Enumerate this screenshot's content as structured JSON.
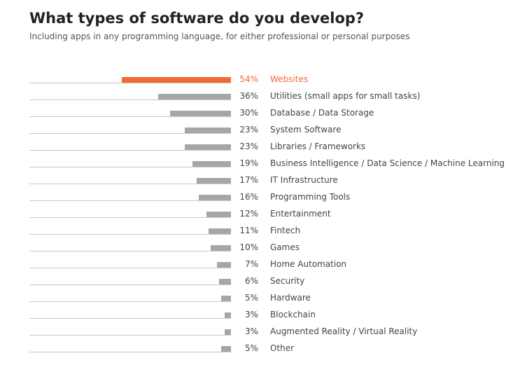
{
  "header": {
    "title": "What types of software do you develop?",
    "subtitle": "Including apps in any programming language, for either professional or personal purposes"
  },
  "colors": {
    "highlight": "#f26a30",
    "bar": "#a6a6a6",
    "baseline": "#c8c8c8"
  },
  "chart_data": {
    "type": "bar",
    "orientation": "horizontal",
    "title": "What types of software do you develop?",
    "subtitle": "Including apps in any programming language, for either professional or personal purposes",
    "unit": "%",
    "highlighted_category": "Websites",
    "xlim": [
      0,
      100
    ],
    "grid": false,
    "legend": "none",
    "categories": [
      "Websites",
      "Utilities (small apps for small tasks)",
      "Database / Data Storage",
      "System Software",
      "Libraries / Frameworks",
      "Business Intelligence / Data Science / Machine Learning",
      "IT Infrastructure",
      "Programming Tools",
      "Entertainment",
      "Fintech",
      "Games",
      "Home Automation",
      "Security",
      "Hardware",
      "Blockchain",
      "Augmented Reality / Virtual Reality",
      "Other"
    ],
    "values": [
      54,
      36,
      30,
      23,
      23,
      19,
      17,
      16,
      12,
      11,
      10,
      7,
      6,
      5,
      3,
      3,
      5
    ],
    "value_labels": [
      "54%",
      "36%",
      "30%",
      "23%",
      "23%",
      "19%",
      "17%",
      "16%",
      "12%",
      "11%",
      "10%",
      "7%",
      "6%",
      "5%",
      "3%",
      "3%",
      "5%"
    ]
  }
}
